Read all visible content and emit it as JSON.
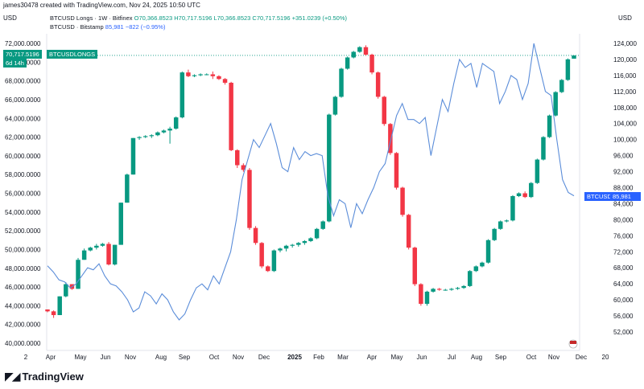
{
  "header": {
    "credit": "james30478 created with TradingView.com, Nov 24, 2025 10:50 UTC"
  },
  "units": {
    "left": "USD",
    "right": "USD"
  },
  "legend": {
    "series1_name": "BTCUSD Longs · 1W · Bitfinex",
    "series1_ohlc": "O70,366.8523 H70,717.5196 L70,366.8523 C70,717.5196 +351.0239 (+0.50%)",
    "series2_name": "BTCUSD · Bitstamp",
    "series2_value": "85,981",
    "series2_change": "−822 (−0.95%)"
  },
  "tags": {
    "left_price": "70,717.5196",
    "left_countdown": "6d 14h",
    "left_label": "BTCUSDLONGS",
    "right_label": "BTCUSD",
    "right_price": "85,981"
  },
  "x_labels": [
    "2",
    "Apr",
    "May",
    "Jun",
    "Nov",
    "Aug",
    "Sep",
    "Oct",
    "Nov",
    "Dec",
    "2025",
    "Feb",
    "Mar",
    "Apr",
    "May",
    "Jun",
    "Jul",
    "Aug",
    "Sep",
    "Oct",
    "Nov",
    "Dec",
    "20"
  ],
  "left_ticks": [
    "72,000.0000",
    "70,000.0000",
    "68,000.0000",
    "66,000.0000",
    "64,000.0000",
    "62,000.0000",
    "60,000.0000",
    "58,000.0000",
    "56,000.0000",
    "54,000.0000",
    "52,000.0000",
    "50,000.0000",
    "48,000.0000",
    "46,000.0000",
    "44,000.0000",
    "42,000.0000",
    "40,000.0000"
  ],
  "right_ticks": [
    "124,000",
    "120,000",
    "116,000",
    "112,000",
    "108,000",
    "104,000",
    "100,000",
    "96,000",
    "92,000",
    "88,000",
    "84,000",
    "80,000",
    "76,000",
    "72,000",
    "68,000",
    "64,000",
    "60,000",
    "56,000",
    "52,000"
  ],
  "logo_text": "TradingView",
  "colors": {
    "up": "#089981",
    "down": "#f23645",
    "line": "#5b8dd9",
    "tag_green": "#089981",
    "tag_blue": "#2962ff"
  },
  "chart_data": {
    "type": "candlestick+line",
    "series": [
      {
        "name": "BTCUSD Longs",
        "axis": "left",
        "ylim": [
          40000,
          72000
        ],
        "candles": [
          [
            43600,
            43600,
            43300,
            43400
          ],
          [
            43400,
            43500,
            42700,
            43000
          ],
          [
            43000,
            45000,
            43000,
            45000
          ],
          [
            45000,
            46500,
            44900,
            46300
          ],
          [
            46300,
            46300,
            45700,
            45800
          ],
          [
            45800,
            49100,
            45800,
            48900
          ],
          [
            48900,
            50100,
            48900,
            49900
          ],
          [
            49900,
            50300,
            49800,
            50200
          ],
          [
            50200,
            50600,
            50000,
            50400
          ],
          [
            50400,
            50700,
            50300,
            50600
          ],
          [
            50600,
            50800,
            48300,
            48400
          ],
          [
            48400,
            50500,
            48300,
            50500
          ],
          [
            50500,
            55000,
            50500,
            55000
          ],
          [
            55000,
            58100,
            55000,
            58000
          ],
          [
            58000,
            61900,
            58000,
            61900
          ],
          [
            61900,
            62100,
            61700,
            62000
          ],
          [
            62000,
            62200,
            61900,
            62100
          ],
          [
            62100,
            62300,
            61900,
            62200
          ],
          [
            62200,
            62600,
            62100,
            62500
          ],
          [
            62500,
            62800,
            62400,
            62700
          ],
          [
            62700,
            63100,
            61300,
            62900
          ],
          [
            62900,
            64200,
            62800,
            64100
          ],
          [
            64100,
            69000,
            64000,
            68900
          ],
          [
            68900,
            69200,
            68400,
            68500
          ],
          [
            68500,
            68700,
            68400,
            68600
          ],
          [
            68600,
            68800,
            68500,
            68700
          ],
          [
            68700,
            68800,
            68600,
            68700
          ],
          [
            68700,
            69000,
            68200,
            68500
          ],
          [
            68500,
            68600,
            68100,
            68200
          ],
          [
            68200,
            68300,
            67600,
            67800
          ],
          [
            67800,
            67900,
            60500,
            60600
          ],
          [
            60600,
            60700,
            58700,
            59000
          ],
          [
            59000,
            59200,
            58300,
            58500
          ],
          [
            58500,
            58700,
            52100,
            52300
          ],
          [
            52300,
            52500,
            50500,
            50700
          ],
          [
            50700,
            50800,
            48000,
            48200
          ],
          [
            48200,
            48300,
            47600,
            47700
          ],
          [
            47700,
            50000,
            47600,
            49900
          ],
          [
            49900,
            50200,
            49700,
            50100
          ],
          [
            50100,
            50500,
            49800,
            50400
          ],
          [
            50400,
            50600,
            50200,
            50500
          ],
          [
            50500,
            50800,
            50300,
            50700
          ],
          [
            50700,
            51000,
            50500,
            50900
          ],
          [
            50900,
            51300,
            50800,
            51200
          ],
          [
            51200,
            52300,
            51100,
            52200
          ],
          [
            52200,
            53100,
            52100,
            53000
          ],
          [
            53000,
            64500,
            52900,
            64400
          ],
          [
            64400,
            66400,
            64300,
            66300
          ],
          [
            66300,
            69400,
            66200,
            69300
          ],
          [
            69300,
            70600,
            69200,
            70500
          ],
          [
            70500,
            71200,
            70400,
            71100
          ],
          [
            71100,
            71700,
            71000,
            71600
          ],
          [
            71600,
            71800,
            70700,
            70800
          ],
          [
            70800,
            70900,
            68700,
            68900
          ],
          [
            68900,
            69000,
            66100,
            66300
          ],
          [
            66300,
            66400,
            63200,
            63400
          ],
          [
            63400,
            63500,
            60100,
            60300
          ],
          [
            60300,
            60400,
            56400,
            56600
          ],
          [
            56600,
            56700,
            53500,
            53700
          ],
          [
            53700,
            53800,
            50000,
            50200
          ],
          [
            50200,
            50300,
            46100,
            46300
          ],
          [
            46300,
            46400,
            44000,
            44200
          ],
          [
            44200,
            45600,
            44000,
            45500
          ],
          [
            45500,
            45900,
            45400,
            45800
          ],
          [
            45800,
            45900,
            45600,
            45700
          ],
          [
            45700,
            45800,
            45600,
            45700
          ],
          [
            45700,
            45900,
            45600,
            45800
          ],
          [
            45800,
            46000,
            45700,
            45900
          ],
          [
            45900,
            46200,
            45800,
            46100
          ],
          [
            46100,
            47800,
            46000,
            47700
          ],
          [
            47700,
            48300,
            47600,
            48200
          ],
          [
            48200,
            48700,
            48100,
            48600
          ],
          [
            48600,
            51100,
            48500,
            51000
          ],
          [
            51000,
            52300,
            50900,
            52200
          ],
          [
            52200,
            53100,
            52100,
            53000
          ],
          [
            53000,
            53200,
            52900,
            53100
          ],
          [
            53100,
            55800,
            53000,
            55700
          ],
          [
            55700,
            56100,
            55600,
            56000
          ],
          [
            56000,
            56200,
            55500,
            55600
          ],
          [
            55600,
            57200,
            55500,
            57100
          ],
          [
            57100,
            59700,
            57000,
            59600
          ],
          [
            59600,
            62100,
            59500,
            62000
          ],
          [
            62000,
            64400,
            61900,
            64300
          ],
          [
            64300,
            66900,
            64200,
            66800
          ],
          [
            66800,
            68200,
            66700,
            68100
          ],
          [
            68100,
            70400,
            68000,
            70300
          ],
          [
            70366.8523,
            70717.5196,
            70366.8523,
            70717.5196
          ]
        ]
      },
      {
        "name": "BTCUSD",
        "axis": "right",
        "ylim": [
          48000,
          128000
        ],
        "values": [
          68500,
          67000,
          65000,
          64500,
          63000,
          64000,
          66000,
          68000,
          67500,
          69000,
          66000,
          64000,
          63500,
          62000,
          60000,
          57000,
          58000,
          62000,
          61000,
          59000,
          61500,
          60000,
          57000,
          55000,
          56500,
          60000,
          63000,
          64000,
          62500,
          66000,
          64000,
          68000,
          72000,
          80000,
          90000,
          95000,
          100000,
          98000,
          101000,
          104000,
          99000,
          93000,
          92000,
          98000,
          95000,
          97000,
          96000,
          96500,
          96000,
          86000,
          81000,
          85000,
          84000,
          78000,
          84000,
          81500,
          85000,
          88000,
          92000,
          94000,
          100000,
          106000,
          109000,
          105000,
          105000,
          104000,
          105500,
          96000,
          103000,
          110000,
          107000,
          114000,
          120000,
          118000,
          119000,
          113000,
          119000,
          118000,
          117000,
          109000,
          112000,
          116000,
          115000,
          110000,
          114000,
          124000,
          118000,
          112000,
          111000,
          100000,
          90000,
          86803,
          85981
        ]
      }
    ],
    "xlabel": "",
    "ylabel_left": "USD",
    "ylabel_right": "USD",
    "grid": true,
    "legend_position": "top-left"
  }
}
